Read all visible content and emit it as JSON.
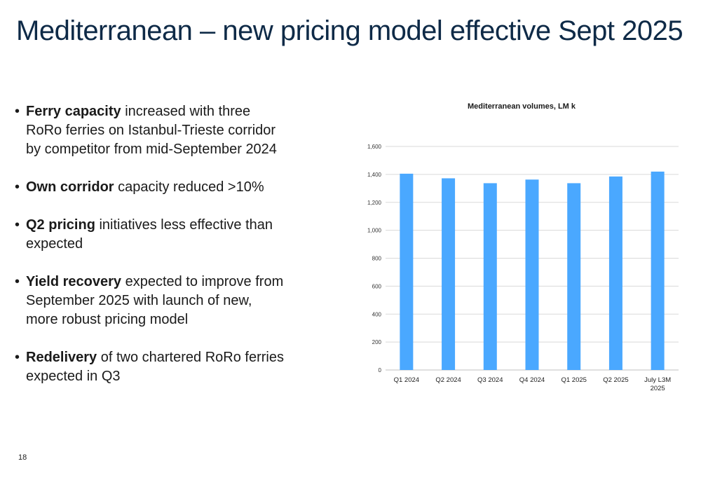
{
  "title": "Mediterranean – new pricing model effective Sept 2025",
  "bullets": [
    {
      "bold": "Ferry capacity",
      "text": " increased with three RoRo ferries on Istanbul-Trieste corridor by competitor from mid-September 2024"
    },
    {
      "bold": "Own corridor",
      "text": " capacity reduced >10%"
    },
    {
      "bold": "Q2 pricing",
      "text": " initiatives less effective than expected"
    },
    {
      "bold": "Yield recovery",
      "text": " expected to improve from September 2025 with launch of new, more robust pricing model"
    },
    {
      "bold": "Redelivery",
      "text": " of two chartered RoRo ferries expected in Q3"
    }
  ],
  "page_number": "18",
  "chart_data": {
    "type": "bar",
    "title": "Mediterranean volumes, LM k",
    "categories": [
      "Q1 2024",
      "Q2 2024",
      "Q3 2024",
      "Q4 2024",
      "Q1 2025",
      "Q2 2025",
      "July L3M 2025"
    ],
    "values": [
      1405,
      1372,
      1337,
      1363,
      1337,
      1385,
      1420
    ],
    "ylim": [
      0,
      1600
    ],
    "yticks": [
      0,
      200,
      400,
      600,
      800,
      1000,
      1200,
      1400,
      1600
    ],
    "ytick_labels": [
      "0",
      "200",
      "400",
      "600",
      "800",
      "1,000",
      "1,200",
      "1,400",
      "1,600"
    ],
    "grid": true,
    "bar_color": "#4aa8ff",
    "grid_color": "#d9d9d9"
  }
}
